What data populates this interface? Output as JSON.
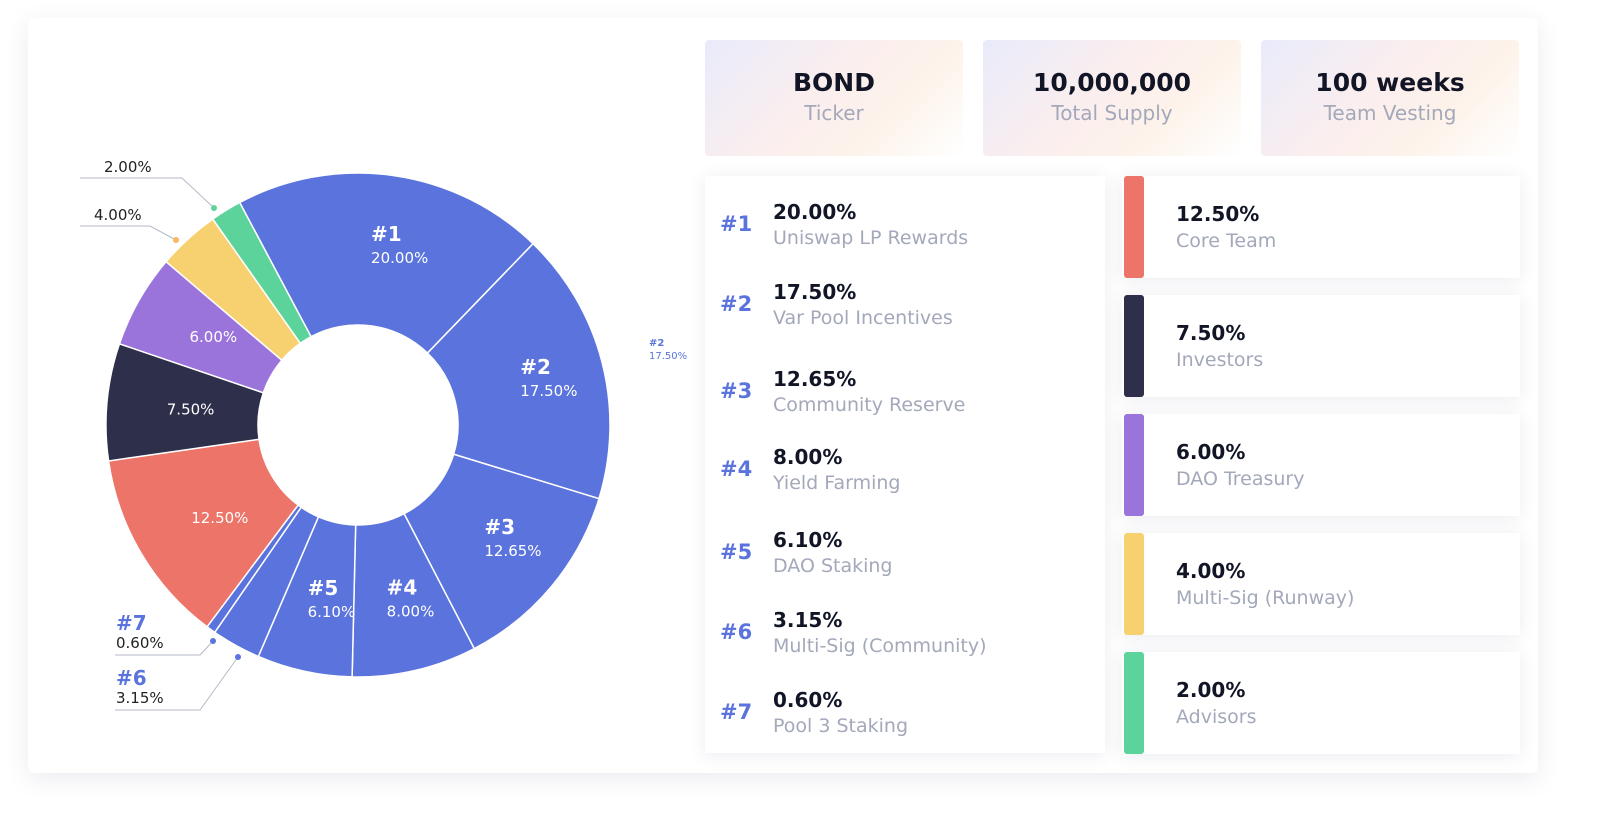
{
  "stats": [
    {
      "value": "BOND",
      "label": "Ticker"
    },
    {
      "value": "10,000,000",
      "label": "Total Supply"
    },
    {
      "value": "100 weeks",
      "label": "Team Vesting"
    }
  ],
  "pool_list": [
    {
      "rank": "#1",
      "percent": "20.00%",
      "name": "Uniswap LP Rewards"
    },
    {
      "rank": "#2",
      "percent": "17.50%",
      "name": "Var Pool Incentives"
    },
    {
      "rank": "#3",
      "percent": "12.65%",
      "name": "Community Reserve"
    },
    {
      "rank": "#4",
      "percent": "8.00%",
      "name": "Yield Farming"
    },
    {
      "rank": "#5",
      "percent": "6.10%",
      "name": "DAO Staking"
    },
    {
      "rank": "#6",
      "percent": "3.15%",
      "name": "Multi-Sig (Community)"
    },
    {
      "rank": "#7",
      "percent": "0.60%",
      "name": "Pool 3 Staking"
    }
  ],
  "other_list": [
    {
      "percent": "12.50%",
      "name": "Core Team",
      "color": "#ec7468"
    },
    {
      "percent": "7.50%",
      "name": "Investors",
      "color": "#2e2f4a"
    },
    {
      "percent": "6.00%",
      "name": "DAO Treasury",
      "color": "#9b74db"
    },
    {
      "percent": "4.00%",
      "name": "Multi-Sig (Runway)",
      "color": "#f7d070"
    },
    {
      "percent": "2.00%",
      "name": "Advisors",
      "color": "#5cd39a"
    }
  ],
  "chart_data": {
    "type": "pie",
    "donut": true,
    "start_angle_deg": -28,
    "slices": [
      {
        "label": "#1",
        "value": 20.0,
        "text": "20.00%",
        "color": "#5b73dc",
        "inside": true
      },
      {
        "label": "#2",
        "value": 17.5,
        "text": "17.50%",
        "color": "#5b73dc",
        "inside": true
      },
      {
        "label": "#3",
        "value": 12.65,
        "text": "12.65%",
        "color": "#5b73dc",
        "inside": true
      },
      {
        "label": "#4",
        "value": 8.0,
        "text": "8.00%",
        "color": "#5b73dc",
        "inside": true
      },
      {
        "label": "#5",
        "value": 6.1,
        "text": "6.10%",
        "color": "#5b73dc",
        "inside": true
      },
      {
        "label": "#6",
        "value": 3.15,
        "text": "3.15%",
        "color": "#5b73dc",
        "inside": false
      },
      {
        "label": "#7",
        "value": 0.6,
        "text": "0.60%",
        "color": "#5b73dc",
        "inside": false
      },
      {
        "label": "",
        "value": 12.5,
        "text": "12.50%",
        "color": "#ec7468",
        "inside": true
      },
      {
        "label": "",
        "value": 7.5,
        "text": "7.50%",
        "color": "#2e2f4a",
        "inside": true
      },
      {
        "label": "",
        "value": 6.0,
        "text": "6.00%",
        "color": "#9b74db",
        "inside": true
      },
      {
        "label": "",
        "value": 4.0,
        "text": "4.00%",
        "color": "#f7d070",
        "inside": false
      },
      {
        "label": "",
        "value": 2.0,
        "text": "2.00%",
        "color": "#5cd39a",
        "inside": false
      }
    ],
    "floating_label": {
      "label": "#2",
      "text": "17.50%"
    }
  }
}
